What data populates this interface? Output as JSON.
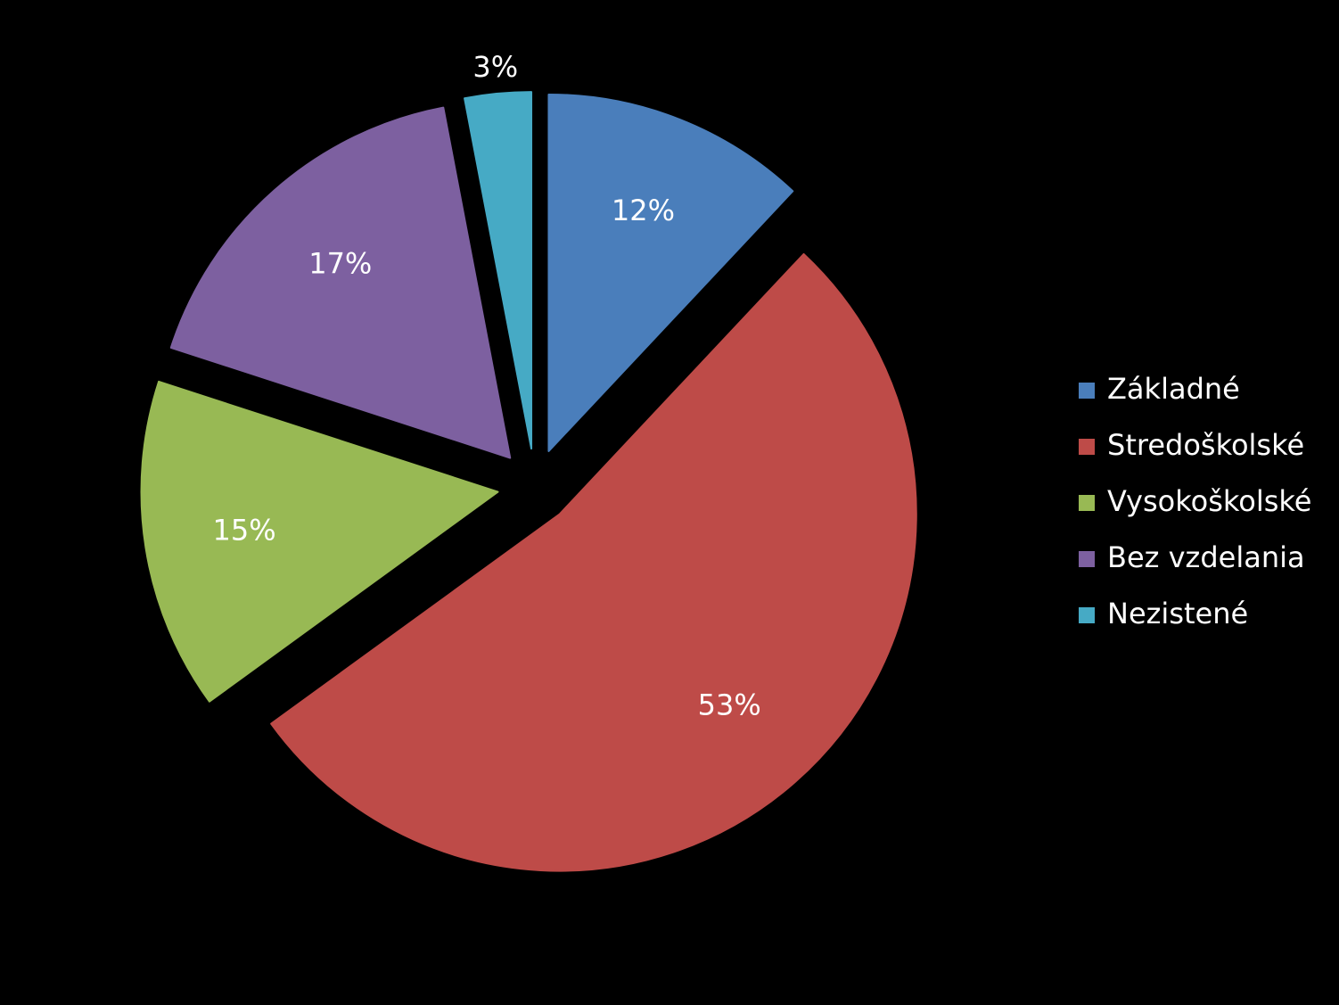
{
  "chart_data": {
    "type": "pie",
    "categories": [
      "Základné",
      "Stredoškolské",
      "Vysokoškolské",
      "Bez vzdelania",
      "Nezistené"
    ],
    "values": [
      12,
      53,
      15,
      17,
      3
    ],
    "value_labels": [
      "12%",
      "53%",
      "15%",
      "17%",
      "3%"
    ],
    "colors": [
      "#4a7ebb",
      "#be4b48",
      "#98b954",
      "#7d60a0",
      "#46aac5"
    ],
    "legend": "right"
  }
}
